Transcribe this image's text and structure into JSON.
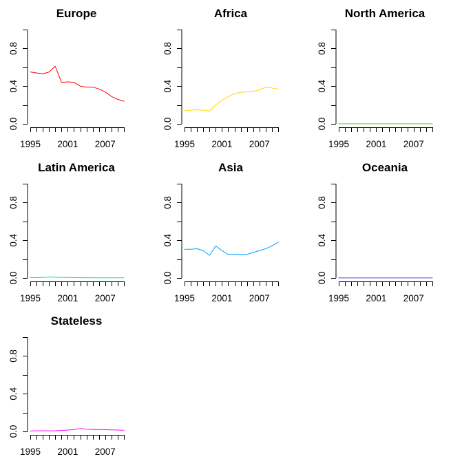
{
  "chart_data": [
    {
      "type": "line",
      "title": "Europe",
      "color": "#ff0000",
      "x": [
        1995,
        1996,
        1997,
        1998,
        1999,
        2000,
        2001,
        2002,
        2003,
        2004,
        2005,
        2006,
        2007,
        2008,
        2009,
        2010
      ],
      "values": [
        0.55,
        0.54,
        0.53,
        0.55,
        0.61,
        0.44,
        0.445,
        0.44,
        0.4,
        0.39,
        0.39,
        0.37,
        0.34,
        0.29,
        0.26,
        0.24
      ],
      "xticks": [
        1995,
        2001,
        2007
      ],
      "yticks": [
        0.0,
        0.4,
        0.8
      ],
      "ytick_labels": [
        "0.0",
        "0.4",
        "0.8"
      ],
      "ylim": [
        0,
        1
      ],
      "xlabel": "",
      "ylabel": ""
    },
    {
      "type": "line",
      "title": "Africa",
      "color": "#ffd700",
      "x": [
        1995,
        1996,
        1997,
        1998,
        1999,
        2000,
        2001,
        2002,
        2003,
        2004,
        2005,
        2006,
        2007,
        2008,
        2009,
        2010
      ],
      "values": [
        0.14,
        0.145,
        0.15,
        0.145,
        0.135,
        0.2,
        0.25,
        0.29,
        0.32,
        0.335,
        0.34,
        0.345,
        0.36,
        0.39,
        0.38,
        0.37
      ],
      "xticks": [
        1995,
        2001,
        2007
      ],
      "yticks": [
        0.0,
        0.4,
        0.8
      ],
      "ytick_labels": [
        "0.0",
        "0.4",
        "0.8"
      ],
      "ylim": [
        0,
        1
      ],
      "xlabel": "",
      "ylabel": ""
    },
    {
      "type": "line",
      "title": "North America",
      "color": "#66dd00",
      "x": [
        1995,
        1996,
        1997,
        1998,
        1999,
        2000,
        2001,
        2002,
        2003,
        2004,
        2005,
        2006,
        2007,
        2008,
        2009,
        2010
      ],
      "values": [
        0.001,
        0.001,
        0.001,
        0.001,
        0.001,
        0.001,
        0.001,
        0.001,
        0.001,
        0.001,
        0.001,
        0.001,
        0.001,
        0.001,
        0.001,
        0.001
      ],
      "xticks": [
        1995,
        2001,
        2007
      ],
      "yticks": [
        0.0,
        0.4,
        0.8
      ],
      "ytick_labels": [
        "0.0",
        "0.4",
        "0.8"
      ],
      "ylim": [
        0,
        1
      ],
      "xlabel": "",
      "ylabel": ""
    },
    {
      "type": "line",
      "title": "Latin America",
      "color": "#00e68c",
      "x": [
        1995,
        1996,
        1997,
        1998,
        1999,
        2000,
        2001,
        2002,
        2003,
        2004,
        2005,
        2006,
        2007,
        2008,
        2009,
        2010
      ],
      "values": [
        0.005,
        0.004,
        0.006,
        0.011,
        0.007,
        0.006,
        0.005,
        0.004,
        0.003,
        0.003,
        0.002,
        0.002,
        0.002,
        0.002,
        0.002,
        0.002
      ],
      "xticks": [
        1995,
        2001,
        2007
      ],
      "yticks": [
        0.0,
        0.4,
        0.8
      ],
      "ytick_labels": [
        "0.0",
        "0.4",
        "0.8"
      ],
      "ylim": [
        0,
        1
      ],
      "xlabel": "",
      "ylabel": ""
    },
    {
      "type": "line",
      "title": "Asia",
      "color": "#00a0ff",
      "x": [
        1995,
        1996,
        1997,
        1998,
        1999,
        2000,
        2001,
        2002,
        2003,
        2004,
        2005,
        2006,
        2007,
        2008,
        2009,
        2010
      ],
      "values": [
        0.305,
        0.305,
        0.31,
        0.29,
        0.24,
        0.34,
        0.29,
        0.25,
        0.25,
        0.25,
        0.25,
        0.27,
        0.29,
        0.31,
        0.34,
        0.38
      ],
      "xticks": [
        1995,
        2001,
        2007
      ],
      "yticks": [
        0.0,
        0.4,
        0.8
      ],
      "ytick_labels": [
        "0.0",
        "0.4",
        "0.8"
      ],
      "ylim": [
        0,
        1
      ],
      "xlabel": "",
      "ylabel": ""
    },
    {
      "type": "line",
      "title": "Oceania",
      "color": "#6a3dff",
      "x": [
        1995,
        1996,
        1997,
        1998,
        1999,
        2000,
        2001,
        2002,
        2003,
        2004,
        2005,
        2006,
        2007,
        2008,
        2009,
        2010
      ],
      "values": [
        0.001,
        0.001,
        0.001,
        0.001,
        0.001,
        0.001,
        0.001,
        0.001,
        0.001,
        0.001,
        0.001,
        0.001,
        0.001,
        0.001,
        0.001,
        0.001
      ],
      "xticks": [
        1995,
        2001,
        2007
      ],
      "yticks": [
        0.0,
        0.4,
        0.8
      ],
      "ytick_labels": [
        "0.0",
        "0.4",
        "0.8"
      ],
      "ylim": [
        0,
        1
      ],
      "xlabel": "",
      "ylabel": ""
    },
    {
      "type": "line",
      "title": "Stateless",
      "color": "#ff00ff",
      "x": [
        1995,
        1996,
        1997,
        1998,
        1999,
        2000,
        2001,
        2002,
        2003,
        2004,
        2005,
        2006,
        2007,
        2008,
        2009,
        2010
      ],
      "values": [
        0.005,
        0.006,
        0.006,
        0.006,
        0.007,
        0.01,
        0.015,
        0.02,
        0.03,
        0.025,
        0.02,
        0.02,
        0.018,
        0.016,
        0.015,
        0.012
      ],
      "xticks": [
        1995,
        2001,
        2007
      ],
      "yticks": [
        0.0,
        0.4,
        0.8
      ],
      "ytick_labels": [
        "0.0",
        "0.4",
        "0.8"
      ],
      "ylim": [
        0,
        1
      ],
      "xlabel": "",
      "ylabel": ""
    }
  ]
}
